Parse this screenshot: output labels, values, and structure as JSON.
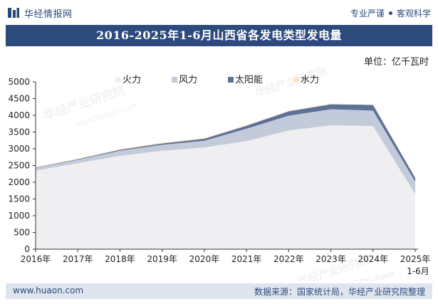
{
  "header": {
    "brand_name": "华经情报网",
    "tagline_left": "专业严谨",
    "tagline_right": "客观科学"
  },
  "title": "2016-2025年1-6月山西省各发电类型发电量",
  "unit_label": "单位：亿千瓦时",
  "watermarks": [
    "华经产业研究院",
    "www.huaon.com"
  ],
  "footer": {
    "website": "www.huaon.com",
    "source": "数据来源：国家统计局，华经产业研究院整理"
  },
  "colors": {
    "brand": "#2d4a7c",
    "thermal": "#efeff1",
    "wind": "#c3cbda",
    "solar": "#5d7098",
    "hydro": "#fbe7c2"
  },
  "chart_data": {
    "type": "area",
    "stacked": true,
    "title": "2016-2025年1-6月山西省各发电类型发电量",
    "xlabel": "",
    "ylabel": "单位：亿千瓦时",
    "categories": [
      "2016年",
      "2017年",
      "2018年",
      "2019年",
      "2020年",
      "2021年",
      "2022年",
      "2023年",
      "2024年",
      "2025年\n1-6月"
    ],
    "ylim": [
      0,
      5000
    ],
    "yticks": [
      0,
      500,
      1000,
      1500,
      2000,
      2500,
      3000,
      3500,
      4000,
      4500,
      5000
    ],
    "legend_position": "top-left",
    "series": [
      {
        "name": "火力",
        "color": "#efeff1",
        "values": [
          2350,
          2570,
          2790,
          2940,
          3040,
          3230,
          3550,
          3700,
          3680,
          1650
        ]
      },
      {
        "name": "风力",
        "color": "#c3cbda",
        "values": [
          80,
          100,
          150,
          180,
          200,
          370,
          440,
          480,
          460,
          370
        ]
      },
      {
        "name": "太阳能",
        "color": "#5d7098",
        "values": [
          10,
          20,
          30,
          40,
          60,
          90,
          130,
          150,
          170,
          110
        ]
      },
      {
        "name": "水力",
        "color": "#fbe7c2",
        "values": [
          12,
          15,
          22,
          25,
          25,
          16,
          18,
          20,
          10,
          8
        ]
      }
    ]
  }
}
